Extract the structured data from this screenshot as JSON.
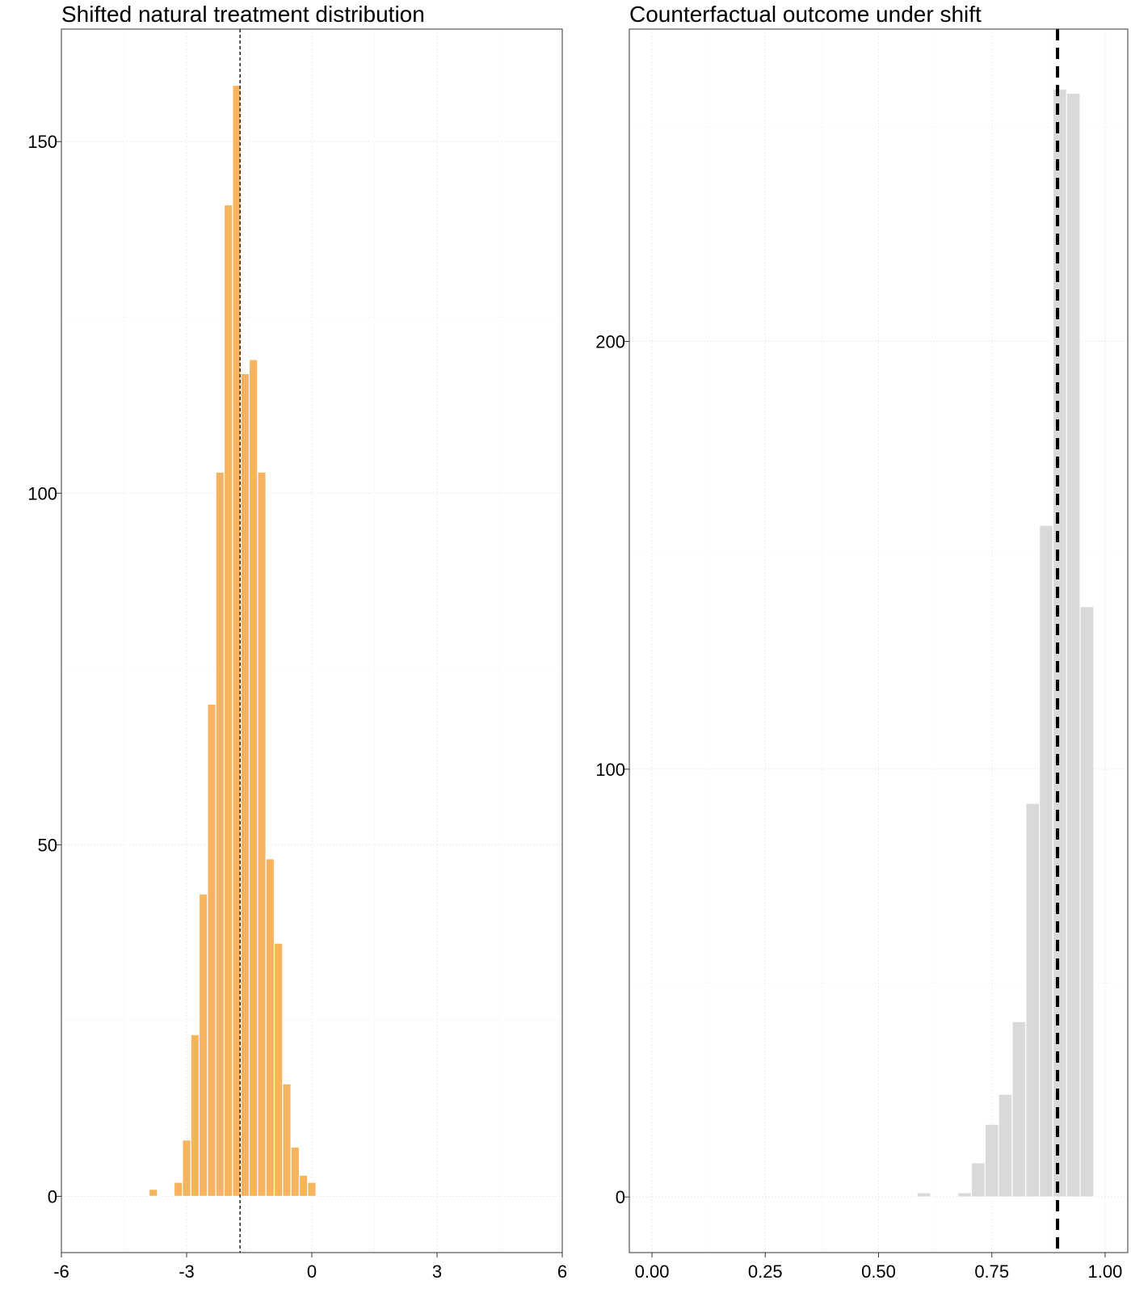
{
  "chart_data": [
    {
      "type": "bar",
      "title": "Shifted natural treatment distribution",
      "xlabel": "",
      "ylabel": "",
      "xlim": [
        -6,
        6
      ],
      "ylim": [
        -8,
        166
      ],
      "grid": true,
      "x_ticks": [
        -6,
        -3,
        0,
        3,
        6
      ],
      "x_tick_labels": [
        "-6",
        "-3",
        "0",
        "3",
        "6"
      ],
      "y_ticks": [
        0,
        50,
        100,
        150
      ],
      "y_tick_labels": [
        "0",
        "50",
        "100",
        "150"
      ],
      "bin_width": 0.2,
      "bins": [
        {
          "x0": -3.9,
          "x1": -3.7,
          "count": 1
        },
        {
          "x0": -3.3,
          "x1": -3.1,
          "count": 2
        },
        {
          "x0": -3.1,
          "x1": -2.9,
          "count": 8
        },
        {
          "x0": -2.9,
          "x1": -2.7,
          "count": 23
        },
        {
          "x0": -2.7,
          "x1": -2.5,
          "count": 43
        },
        {
          "x0": -2.5,
          "x1": -2.3,
          "count": 70
        },
        {
          "x0": -2.3,
          "x1": -2.1,
          "count": 103
        },
        {
          "x0": -2.1,
          "x1": -1.9,
          "count": 141
        },
        {
          "x0": -1.9,
          "x1": -1.7,
          "count": 158
        },
        {
          "x0": -1.7,
          "x1": -1.5,
          "count": 117
        },
        {
          "x0": -1.5,
          "x1": -1.3,
          "count": 119
        },
        {
          "x0": -1.3,
          "x1": -1.1,
          "count": 103
        },
        {
          "x0": -1.1,
          "x1": -0.9,
          "count": 48
        },
        {
          "x0": -0.9,
          "x1": -0.7,
          "count": 36
        },
        {
          "x0": -0.7,
          "x1": -0.5,
          "count": 16
        },
        {
          "x0": -0.5,
          "x1": -0.3,
          "count": 7
        },
        {
          "x0": -0.3,
          "x1": -0.1,
          "count": 3
        },
        {
          "x0": -0.1,
          "x1": 0.1,
          "count": 2
        }
      ],
      "reference_line_x": -1.72,
      "colors": {
        "bar": "#f8b35f",
        "bar_outline": "#ffffff",
        "reference_line": "#000000"
      }
    },
    {
      "type": "bar",
      "title": "Counterfactual outcome under shift",
      "xlabel": "",
      "ylabel": "",
      "xlim": [
        -0.05,
        1.05
      ],
      "ylim": [
        -13,
        273
      ],
      "grid": true,
      "x_ticks": [
        0.0,
        0.25,
        0.5,
        0.75,
        1.0
      ],
      "x_tick_labels": [
        "0.00",
        "0.25",
        "0.50",
        "0.75",
        "1.00"
      ],
      "y_ticks": [
        0,
        100,
        200
      ],
      "y_tick_labels": [
        "0",
        "100",
        "200"
      ],
      "bin_width": 0.03,
      "bins": [
        {
          "x0": 0.585,
          "x1": 0.615,
          "count": 1
        },
        {
          "x0": 0.675,
          "x1": 0.705,
          "count": 1
        },
        {
          "x0": 0.705,
          "x1": 0.735,
          "count": 8
        },
        {
          "x0": 0.735,
          "x1": 0.765,
          "count": 17
        },
        {
          "x0": 0.765,
          "x1": 0.795,
          "count": 24
        },
        {
          "x0": 0.795,
          "x1": 0.825,
          "count": 41
        },
        {
          "x0": 0.825,
          "x1": 0.855,
          "count": 92
        },
        {
          "x0": 0.855,
          "x1": 0.885,
          "count": 157
        },
        {
          "x0": 0.885,
          "x1": 0.915,
          "count": 259
        },
        {
          "x0": 0.915,
          "x1": 0.945,
          "count": 258
        },
        {
          "x0": 0.945,
          "x1": 0.975,
          "count": 138
        }
      ],
      "reference_line_x": 0.895,
      "colors": {
        "bar": "#d9d9d9",
        "bar_outline": "#ffffff",
        "reference_line": "#000000"
      }
    }
  ]
}
